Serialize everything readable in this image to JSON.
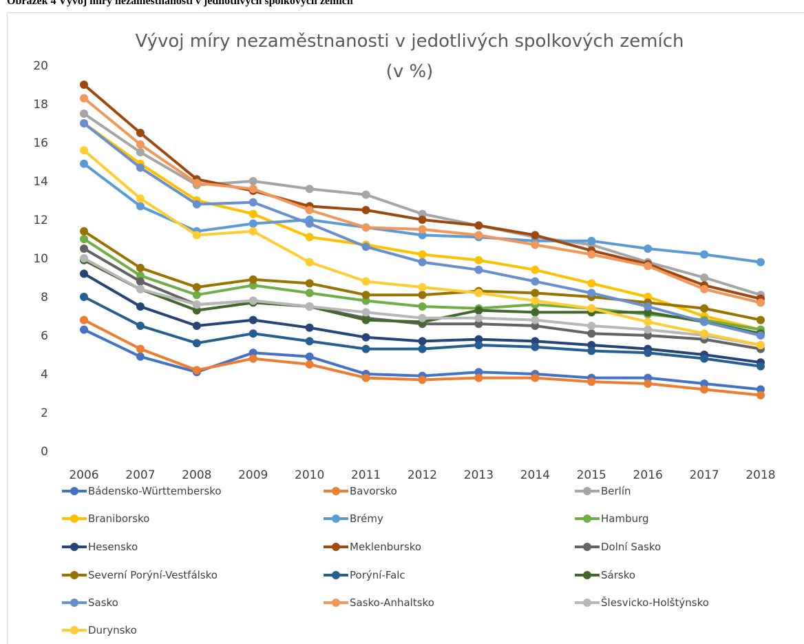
{
  "caption": "Obrázek 4 Vývoj míry nezaměstnanosti v jednotlivých spolkových zemích",
  "chart_data": {
    "type": "line",
    "title": [
      "Vývoj míry nezaměstnanosti v jedotlivých spolkových zemích",
      "(v %)"
    ],
    "categories": [
      "2006",
      "2007",
      "2008",
      "2009",
      "2010",
      "2011",
      "2012",
      "2013",
      "2014",
      "2015",
      "2016",
      "2017",
      "2018"
    ],
    "ylim": [
      0,
      20
    ],
    "yticks": [
      0,
      2,
      4,
      6,
      8,
      10,
      12,
      14,
      16,
      18,
      20
    ],
    "grid": false,
    "series": [
      {
        "name": "Bádensko-Württembersko",
        "color": "#4472c4",
        "values": [
          6.3,
          4.9,
          4.1,
          5.1,
          4.9,
          4.0,
          3.9,
          4.1,
          4.0,
          3.8,
          3.8,
          3.5,
          3.2
        ]
      },
      {
        "name": "Bavorsko",
        "color": "#ed7d31",
        "values": [
          6.8,
          5.3,
          4.2,
          4.8,
          4.5,
          3.8,
          3.7,
          3.8,
          3.8,
          3.6,
          3.5,
          3.2,
          2.9
        ]
      },
      {
        "name": "Berlín",
        "color": "#a5a5a5",
        "values": [
          17.5,
          15.5,
          13.8,
          14.0,
          13.6,
          13.3,
          12.3,
          11.7,
          11.1,
          10.7,
          9.8,
          9.0,
          8.1
        ]
      },
      {
        "name": "Braniborsko",
        "color": "#ffc000",
        "values": [
          17.0,
          14.9,
          13.0,
          12.3,
          11.1,
          10.7,
          10.2,
          9.9,
          9.4,
          8.7,
          8.0,
          7.0,
          6.3
        ]
      },
      {
        "name": "Brémy",
        "color": "#5b9bd5",
        "values": [
          14.9,
          12.7,
          11.4,
          11.8,
          12.0,
          11.6,
          11.2,
          11.1,
          10.9,
          10.9,
          10.5,
          10.2,
          9.8
        ]
      },
      {
        "name": "Hamburg",
        "color": "#70ad47",
        "values": [
          11.0,
          9.1,
          8.1,
          8.6,
          8.2,
          7.8,
          7.5,
          7.4,
          7.6,
          7.4,
          7.1,
          6.8,
          6.3
        ]
      },
      {
        "name": "Hesensko",
        "color": "#264478",
        "values": [
          9.2,
          7.5,
          6.5,
          6.8,
          6.4,
          5.9,
          5.7,
          5.8,
          5.7,
          5.5,
          5.3,
          5.0,
          4.6
        ]
      },
      {
        "name": "Meklenbursko",
        "color": "#9e480e",
        "values": [
          19.0,
          16.5,
          14.1,
          13.5,
          12.7,
          12.5,
          12.0,
          11.7,
          11.2,
          10.4,
          9.7,
          8.6,
          7.9
        ]
      },
      {
        "name": "Dolní Sasko",
        "color": "#636363",
        "values": [
          10.5,
          8.8,
          7.6,
          7.8,
          7.5,
          6.9,
          6.6,
          6.6,
          6.5,
          6.1,
          6.0,
          5.8,
          5.3
        ]
      },
      {
        "name": "Severní Porýní-Vestfálsko",
        "color": "#997300",
        "values": [
          11.4,
          9.5,
          8.5,
          8.9,
          8.7,
          8.1,
          8.1,
          8.3,
          8.2,
          8.0,
          7.7,
          7.4,
          6.8
        ]
      },
      {
        "name": "Porýní-Falc",
        "color": "#255e91",
        "values": [
          8.0,
          6.5,
          5.6,
          6.1,
          5.7,
          5.3,
          5.3,
          5.5,
          5.4,
          5.2,
          5.1,
          4.8,
          4.4
        ]
      },
      {
        "name": "Sársko",
        "color": "#43682b",
        "values": [
          9.9,
          8.4,
          7.3,
          7.7,
          7.5,
          6.8,
          6.7,
          7.3,
          7.2,
          7.2,
          7.2,
          6.7,
          6.1
        ]
      },
      {
        "name": "Sasko",
        "color": "#698ed0",
        "values": [
          17.0,
          14.7,
          12.8,
          12.9,
          11.8,
          10.6,
          9.8,
          9.4,
          8.8,
          8.2,
          7.5,
          6.7,
          6.0
        ]
      },
      {
        "name": "Sasko-Anhaltsko",
        "color": "#f1975a",
        "values": [
          18.3,
          15.9,
          13.9,
          13.6,
          12.5,
          11.6,
          11.5,
          11.2,
          10.7,
          10.2,
          9.6,
          8.4,
          7.7
        ]
      },
      {
        "name": "Šlesvicko-Holštýnsko",
        "color": "#b7b7b7",
        "values": [
          10.0,
          8.4,
          7.6,
          7.8,
          7.5,
          7.2,
          6.9,
          6.9,
          6.8,
          6.5,
          6.3,
          6.0,
          5.5
        ]
      },
      {
        "name": "Durynsko",
        "color": "#ffcd33",
        "values": [
          15.6,
          13.1,
          11.2,
          11.4,
          9.8,
          8.8,
          8.5,
          8.2,
          7.8,
          7.4,
          6.7,
          6.1,
          5.5
        ]
      }
    ]
  }
}
